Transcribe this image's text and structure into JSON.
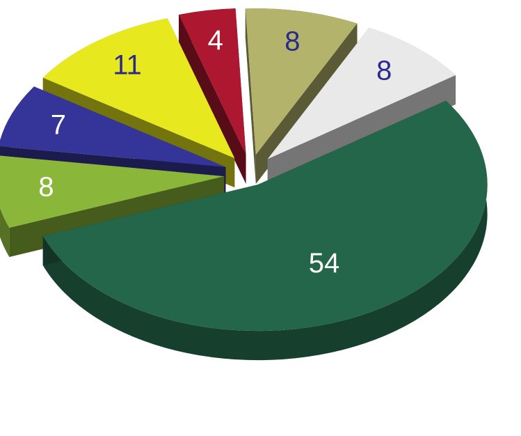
{
  "chart_data": {
    "type": "pie",
    "title": "",
    "legend": "none",
    "three_d": true,
    "exploded": true,
    "slices": [
      {
        "value": 54,
        "label": "54",
        "color": "#23664a",
        "label_color": "#ffffff"
      },
      {
        "value": 8,
        "label": "8",
        "color": "#8ab73a",
        "label_color": "#ffffff"
      },
      {
        "value": 7,
        "label": "7",
        "color": "#353599",
        "label_color": "#ffffff"
      },
      {
        "value": 11,
        "label": "11",
        "color": "#e8e81e",
        "label_color": "#2a2a8a"
      },
      {
        "value": 4,
        "label": "4",
        "color": "#ad172f",
        "label_color": "#ffffff"
      },
      {
        "value": 8,
        "label": "8",
        "color": "#b4b36c",
        "label_color": "#2a2a8a"
      },
      {
        "value": 8,
        "label": "8",
        "color": "#e9e9e9",
        "label_color": "#2a2a8a"
      }
    ]
  }
}
